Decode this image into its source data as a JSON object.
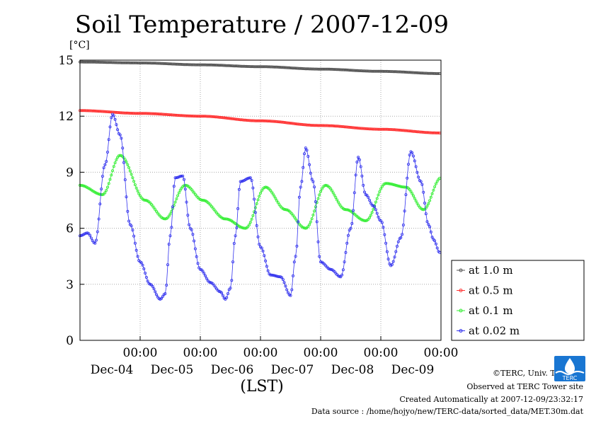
{
  "chart_data": {
    "type": "line",
    "title": "Soil Temperature / 2007-12-09",
    "ylabel": "[°C]",
    "xlabel": "(LST)",
    "ylim": [
      0,
      15
    ],
    "yticks": [
      "15",
      "12",
      "9",
      "6",
      "3",
      "0"
    ],
    "ytick_values": [
      15,
      12,
      9,
      6,
      3,
      0
    ],
    "xlim_hours": [
      0,
      144
    ],
    "xticks": [
      {
        "time": "00:00",
        "date": "Dec-04",
        "hour": 24
      },
      {
        "time": "00:00",
        "date": "Dec-05",
        "hour": 48
      },
      {
        "time": "00:00",
        "date": "Dec-06",
        "hour": 72
      },
      {
        "time": "00:00",
        "date": "Dec-07",
        "hour": 96
      },
      {
        "time": "00:00",
        "date": "Dec-08",
        "hour": 120
      },
      {
        "time": "00:00",
        "date": "Dec-09",
        "hour": 144
      }
    ],
    "grid": true,
    "legend_position": "right",
    "series": [
      {
        "name": "at 1.0 m",
        "color": "#555555",
        "x": [
          0,
          24,
          48,
          72,
          96,
          120,
          144
        ],
        "y": [
          14.9,
          14.85,
          14.75,
          14.65,
          14.52,
          14.4,
          14.28
        ]
      },
      {
        "name": "at 0.5 m",
        "color": "#ff3333",
        "x": [
          0,
          24,
          48,
          72,
          96,
          120,
          144
        ],
        "y": [
          12.3,
          12.15,
          12.0,
          11.75,
          11.5,
          11.3,
          11.1
        ]
      },
      {
        "name": "at 0.1 m",
        "color": "#33ee33",
        "x": [
          0,
          9,
          16,
          26,
          34,
          42,
          49,
          58,
          66,
          74,
          82,
          90,
          98,
          106,
          114,
          122,
          130,
          137,
          144
        ],
        "y": [
          8.3,
          7.8,
          9.9,
          7.5,
          6.5,
          8.3,
          7.5,
          6.5,
          6.0,
          8.2,
          7.0,
          6.0,
          8.3,
          7.0,
          6.4,
          8.4,
          8.2,
          7.0,
          8.7
        ]
      },
      {
        "name": "at 0.02 m",
        "color": "#3333ee",
        "x": [
          0,
          3,
          6,
          10,
          13,
          16,
          20,
          24,
          28,
          32,
          34,
          36,
          38,
          41,
          44,
          48,
          52,
          56,
          58,
          60,
          62,
          64,
          68,
          72,
          76,
          80,
          84,
          86,
          88,
          90,
          93,
          96,
          100,
          104,
          108,
          111,
          114,
          117,
          120,
          124,
          128,
          132,
          136,
          139,
          141,
          143.5
        ],
        "y": [
          5.6,
          5.75,
          5.2,
          9.4,
          12.1,
          11.0,
          6.2,
          4.2,
          3.0,
          2.2,
          2.5,
          5.6,
          8.7,
          8.8,
          6.0,
          3.8,
          3.1,
          2.6,
          2.2,
          2.8,
          5.6,
          8.5,
          8.7,
          5.0,
          3.5,
          3.4,
          2.4,
          4.5,
          8.2,
          10.3,
          8.5,
          4.2,
          3.8,
          3.4,
          6.0,
          9.8,
          7.8,
          7.2,
          6.4,
          4.0,
          5.5,
          10.1,
          8.5,
          6.2,
          5.4,
          4.7
        ]
      }
    ]
  },
  "legend": {
    "items": [
      "at 1.0 m",
      "at 0.5 m",
      "at 0.1 m",
      "at 0.02 m"
    ]
  },
  "footer": {
    "copyright": "©TERC, Univ. Tsukuba",
    "site": "Observed at TERC Tower site",
    "created": "Created Automatically at 2007-12-09/23:32:17",
    "source": "Data source : /home/hojyo/new/TERC-data/sorted_data/MET.30m.dat",
    "logo_text": "TERC"
  }
}
